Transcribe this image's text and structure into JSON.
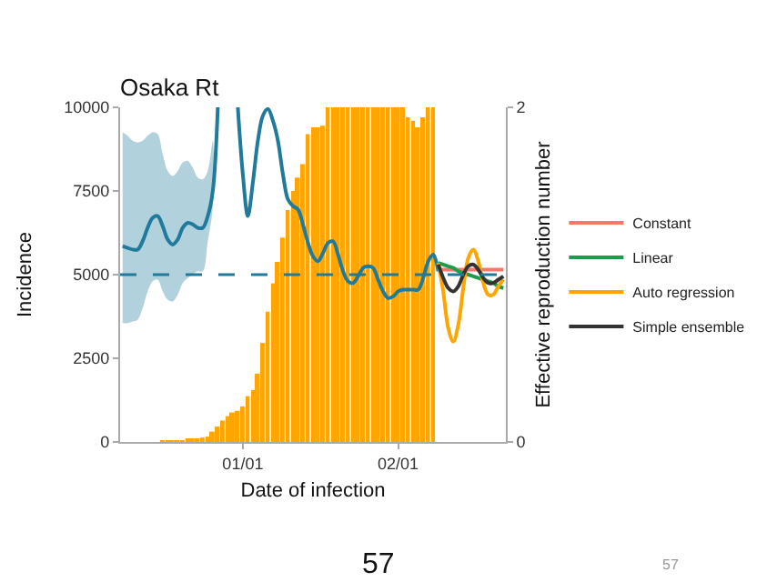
{
  "chart_data": {
    "type": "bar",
    "title": "Osaka Rt",
    "xlabel": "Date of infection",
    "ylabel": "Incidence",
    "y2label": "Effective reproduction number",
    "categories": [
      null,
      null,
      null,
      null,
      null,
      null,
      null,
      null,
      null,
      null,
      null,
      null,
      null,
      null,
      null,
      null,
      null,
      null,
      null,
      null,
      null,
      null,
      null,
      null,
      "01/01",
      null,
      null,
      null,
      null,
      null,
      null,
      null,
      null,
      null,
      null,
      null,
      null,
      null,
      null,
      null,
      null,
      null,
      null,
      null,
      null,
      null,
      null,
      null,
      null,
      null,
      null,
      null,
      null,
      null,
      null,
      "02/01",
      null,
      null,
      null,
      null,
      null,
      null,
      null,
      null,
      null,
      null,
      null,
      null,
      null,
      null,
      null,
      null,
      null,
      null,
      null,
      null,
      null
    ],
    "ylim": [
      0,
      10000
    ],
    "yticks": [
      0,
      2500,
      5000,
      7500,
      10000
    ],
    "y2lim": [
      0,
      2
    ],
    "y2ticks": [
      0,
      2
    ],
    "legend": "right",
    "series": [
      {
        "color": "#ffa500",
        "values": [
          null,
          null,
          null,
          null,
          null,
          null,
          null,
          null,
          10,
          20,
          30,
          40,
          50,
          60,
          80,
          100,
          130,
          160,
          310,
          460,
          640,
          770,
          880,
          930,
          1060,
          1370,
          1550,
          2040,
          2960,
          3890,
          4740,
          5380,
          6110,
          6930,
          7500,
          7900,
          8300,
          9200,
          9400,
          9400,
          9450,
          10000,
          10000,
          10000,
          10000,
          10000,
          10000,
          10000,
          10000,
          10000,
          10000,
          10000,
          10000,
          10000,
          10000,
          10000,
          10000,
          9700,
          9600,
          9400,
          9700,
          10000,
          10000,
          null,
          null,
          null,
          null,
          null,
          null,
          null,
          null,
          null,
          null,
          null,
          null,
          null,
          null
        ]
      },
      {
        "type": "line",
        "axis": "y2",
        "color": "#1f7a9c",
        "values": [
          1.17,
          1.16,
          1.15,
          1.15,
          1.2,
          1.28,
          1.34,
          1.35,
          1.29,
          1.21,
          1.18,
          1.21,
          1.28,
          1.31,
          1.3,
          1.28,
          1.28,
          1.35,
          1.5,
          2.0,
          null,
          null,
          null,
          2.0,
          1.6,
          1.35,
          1.55,
          1.8,
          1.95,
          1.99,
          1.92,
          1.8,
          1.6,
          1.45,
          1.41,
          1.39,
          1.3,
          1.19,
          1.11,
          1.08,
          1.13,
          1.19,
          1.2,
          1.12,
          1.02,
          0.96,
          0.95,
          0.99,
          1.04,
          1.05,
          1.04,
          0.97,
          0.9,
          0.86,
          0.87,
          0.9,
          0.91,
          0.91,
          0.91,
          0.91,
          0.98,
          1.08,
          1.12,
          1.02,
          null,
          null,
          null,
          null,
          null,
          null,
          null,
          null,
          null,
          null,
          null,
          null,
          null
        ],
        "lower": [
          0.71,
          0.71,
          0.72,
          0.73,
          0.8,
          0.9,
          0.96,
          0.97,
          0.9,
          0.85,
          0.84,
          0.88,
          0.95,
          0.98,
          1.0,
          1.02,
          1.02,
          1.2,
          1.4,
          null,
          null,
          null,
          null,
          null,
          null,
          null,
          null,
          null,
          null,
          null,
          null,
          null,
          null,
          null,
          null,
          null,
          null,
          null,
          null,
          null,
          null,
          null,
          null,
          null,
          null,
          null,
          null,
          null,
          null,
          null,
          null,
          null,
          null,
          null,
          null,
          null,
          null,
          null,
          null,
          null,
          null,
          null,
          null,
          null,
          null,
          null,
          null,
          null,
          null,
          null,
          null,
          null,
          null,
          null,
          null,
          null,
          null
        ],
        "upper": [
          1.85,
          1.83,
          1.8,
          1.79,
          1.8,
          1.83,
          1.85,
          1.84,
          1.72,
          1.62,
          1.59,
          1.62,
          1.67,
          1.68,
          1.64,
          1.58,
          1.57,
          1.62,
          1.8,
          null,
          null,
          null,
          null,
          null,
          null,
          null,
          null,
          null,
          null,
          null,
          null,
          null,
          null,
          null,
          null,
          null,
          null,
          null,
          null,
          null,
          null,
          null,
          null,
          null,
          null,
          null,
          null,
          null,
          null,
          null,
          null,
          null,
          null,
          null,
          null,
          null,
          null,
          null,
          null,
          null,
          null,
          null,
          null,
          null,
          null,
          null,
          null,
          null,
          null,
          null,
          null,
          null,
          null,
          null,
          null,
          null,
          null
        ]
      },
      {
        "type": "line",
        "axis": "y2",
        "name": "Constant",
        "color": "#f8766d",
        "values": [
          null,
          null,
          null,
          null,
          null,
          null,
          null,
          null,
          null,
          null,
          null,
          null,
          null,
          null,
          null,
          null,
          null,
          null,
          null,
          null,
          null,
          null,
          null,
          null,
          null,
          null,
          null,
          null,
          null,
          null,
          null,
          null,
          null,
          null,
          null,
          null,
          null,
          null,
          null,
          null,
          null,
          null,
          null,
          null,
          null,
          null,
          null,
          null,
          null,
          null,
          null,
          null,
          null,
          null,
          null,
          null,
          null,
          null,
          null,
          null,
          null,
          null,
          null,
          1.03,
          1.03,
          1.03,
          1.03,
          1.03,
          1.03,
          1.03,
          1.03,
          1.03,
          1.03,
          1.03,
          1.03,
          1.03,
          1.03
        ]
      },
      {
        "type": "line",
        "axis": "y2",
        "name": "Linear",
        "color": "#1b9e4b",
        "values": [
          null,
          null,
          null,
          null,
          null,
          null,
          null,
          null,
          null,
          null,
          null,
          null,
          null,
          null,
          null,
          null,
          null,
          null,
          null,
          null,
          null,
          null,
          null,
          null,
          null,
          null,
          null,
          null,
          null,
          null,
          null,
          null,
          null,
          null,
          null,
          null,
          null,
          null,
          null,
          null,
          null,
          null,
          null,
          null,
          null,
          null,
          null,
          null,
          null,
          null,
          null,
          null,
          null,
          null,
          null,
          null,
          null,
          null,
          null,
          null,
          null,
          null,
          null,
          1.07,
          1.06,
          1.05,
          1.04,
          1.02,
          1.01,
          1.0,
          0.99,
          0.98,
          0.97,
          0.96,
          0.95,
          0.93,
          0.92
        ]
      },
      {
        "type": "line",
        "axis": "y2",
        "name": "Auto regression",
        "color": "#ffa500",
        "values": [
          null,
          null,
          null,
          null,
          null,
          null,
          null,
          null,
          null,
          null,
          null,
          null,
          null,
          null,
          null,
          null,
          null,
          null,
          null,
          null,
          null,
          null,
          null,
          null,
          null,
          null,
          null,
          null,
          null,
          null,
          null,
          null,
          null,
          null,
          null,
          null,
          null,
          null,
          null,
          null,
          null,
          null,
          null,
          null,
          null,
          null,
          null,
          null,
          null,
          null,
          null,
          null,
          null,
          null,
          null,
          null,
          null,
          null,
          null,
          null,
          null,
          null,
          null,
          1.07,
          0.9,
          0.68,
          0.6,
          0.7,
          0.92,
          1.1,
          1.15,
          1.08,
          0.95,
          0.88,
          0.88,
          0.93,
          0.97
        ]
      },
      {
        "type": "line",
        "axis": "y2",
        "name": "Simple ensemble",
        "color": "#333333",
        "values": [
          null,
          null,
          null,
          null,
          null,
          null,
          null,
          null,
          null,
          null,
          null,
          null,
          null,
          null,
          null,
          null,
          null,
          null,
          null,
          null,
          null,
          null,
          null,
          null,
          null,
          null,
          null,
          null,
          null,
          null,
          null,
          null,
          null,
          null,
          null,
          null,
          null,
          null,
          null,
          null,
          null,
          null,
          null,
          null,
          null,
          null,
          null,
          null,
          null,
          null,
          null,
          null,
          null,
          null,
          null,
          null,
          null,
          null,
          null,
          null,
          null,
          null,
          null,
          1.06,
          0.98,
          0.92,
          0.9,
          0.93,
          1.0,
          1.05,
          1.06,
          1.03,
          0.98,
          0.95,
          0.95,
          0.97,
          0.99
        ]
      }
    ],
    "ref_lines": [
      {
        "axis": "y2",
        "value": 1,
        "color": "#1f7a9c",
        "line_style": "dashed"
      }
    ],
    "annotations": [
      "57",
      "57"
    ]
  }
}
